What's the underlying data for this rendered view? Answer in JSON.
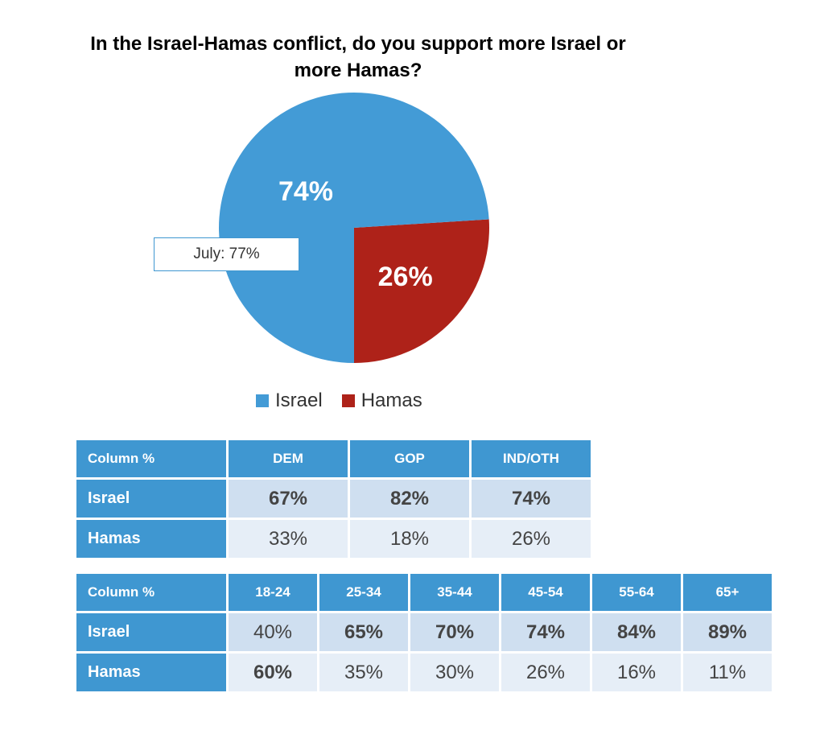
{
  "chart_data": {
    "type": "pie",
    "title": "In the Israel-Hamas conflict, do you support more Israel or more Hamas?",
    "slices": [
      {
        "label": "Israel",
        "value": 74,
        "display": "74%",
        "color": "#439bd6"
      },
      {
        "label": "Hamas",
        "value": 26,
        "display": "26%",
        "color": "#ae2219"
      }
    ],
    "annotation": "July: 77%",
    "legend_position": "bottom"
  },
  "tables": {
    "party": {
      "header": [
        "Column %",
        "DEM",
        "GOP",
        "IND/OTH"
      ],
      "rows": [
        {
          "label": "Israel",
          "values": [
            "67%",
            "82%",
            "74%"
          ],
          "bold": [
            true,
            true,
            true
          ]
        },
        {
          "label": "Hamas",
          "values": [
            "33%",
            "18%",
            "26%"
          ],
          "bold": [
            false,
            false,
            false
          ]
        }
      ]
    },
    "age": {
      "header": [
        "Column %",
        "18-24",
        "25-34",
        "35-44",
        "45-54",
        "55-64",
        "65+"
      ],
      "rows": [
        {
          "label": "Israel",
          "values": [
            "40%",
            "65%",
            "70%",
            "74%",
            "84%",
            "89%"
          ],
          "bold": [
            false,
            true,
            true,
            true,
            true,
            true
          ]
        },
        {
          "label": "Hamas",
          "values": [
            "60%",
            "35%",
            "30%",
            "26%",
            "16%",
            "11%"
          ],
          "bold": [
            true,
            false,
            false,
            false,
            false,
            false
          ]
        }
      ]
    }
  }
}
